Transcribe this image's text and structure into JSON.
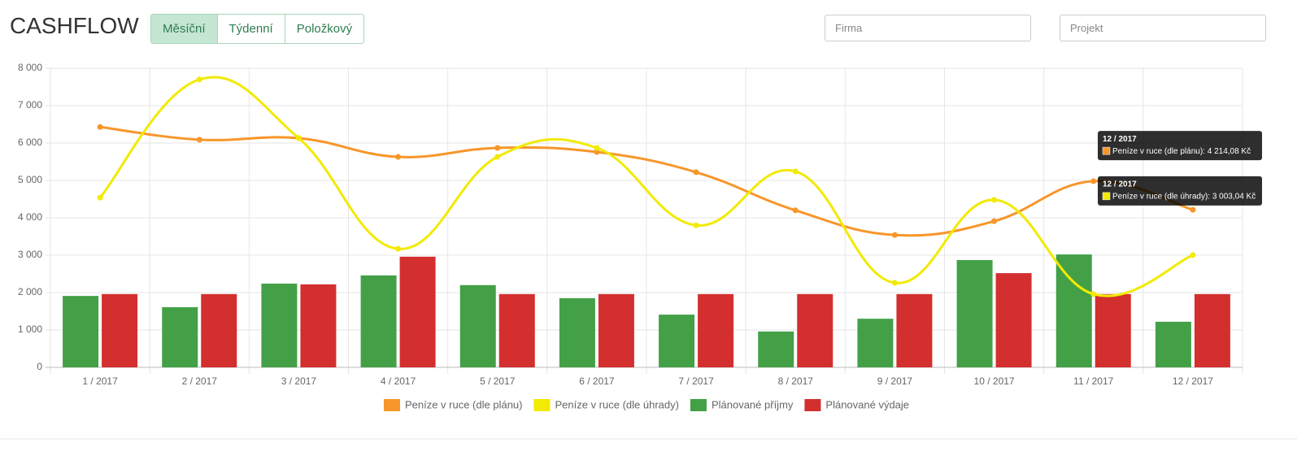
{
  "header": {
    "title": "CASHFLOW",
    "tabs": [
      "Měsíční",
      "Týdenní",
      "Položkový"
    ],
    "active_tab": 0
  },
  "filters": [
    "Firma",
    "Projekt"
  ],
  "chart_data": {
    "type": "bar",
    "categories": [
      "1 / 2017",
      "2 / 2017",
      "3 / 2017",
      "4 / 2017",
      "5 / 2017",
      "6 / 2017",
      "7 / 2017",
      "8 / 2017",
      "9 / 2017",
      "10 / 2017",
      "11 / 2017",
      "12 / 2017"
    ],
    "series": [
      {
        "name": "Peníze v ruce (dle plánu)",
        "type": "line",
        "color": "#f7962a",
        "values": [
          6430,
          6090,
          6130,
          5630,
          5870,
          5760,
          5220,
          4200,
          3540,
          3910,
          4980,
          4214.08
        ]
      },
      {
        "name": "Peníze v ruce (dle úhrady)",
        "type": "line",
        "color": "#f2ea00",
        "values": [
          4540,
          7700,
          6130,
          3170,
          5630,
          5870,
          3800,
          5240,
          2260,
          4480,
          1960,
          3003.04
        ]
      },
      {
        "name": "Plánované příjmy",
        "type": "bar",
        "color": "#43a047",
        "values": [
          1910,
          1610,
          2240,
          2460,
          2200,
          1850,
          1410,
          960,
          1300,
          2870,
          3020,
          1220
        ]
      },
      {
        "name": "Plánované výdaje",
        "type": "bar",
        "color": "#d32f2f",
        "values": [
          1960,
          1960,
          2220,
          2960,
          1960,
          1960,
          1960,
          1960,
          1960,
          2520,
          1960,
          1960
        ]
      }
    ],
    "ylim": [
      0,
      8000
    ],
    "yticks": [
      0,
      {
        "value": 1000,
        "label": "1 000"
      },
      {
        "value": 2000,
        "label": "2 000"
      },
      {
        "value": 3000,
        "label": "3 000"
      },
      {
        "value": 4000,
        "label": "4 000"
      },
      {
        "value": 5000,
        "label": "5 000"
      },
      {
        "value": 6000,
        "label": "6 000"
      },
      {
        "value": 7000,
        "label": "7 000"
      },
      {
        "value": 8000,
        "label": "8 000"
      }
    ],
    "grid": true,
    "legend": "bottom",
    "annotations": [
      {
        "title": "12 / 2017",
        "text": "Peníze v ruce (dle plánu): 4 214,08 Kč"
      },
      {
        "title": "12 / 2017",
        "text": "Peníze v ruce (dle úhrady): 3 003,04 Kč"
      }
    ]
  }
}
